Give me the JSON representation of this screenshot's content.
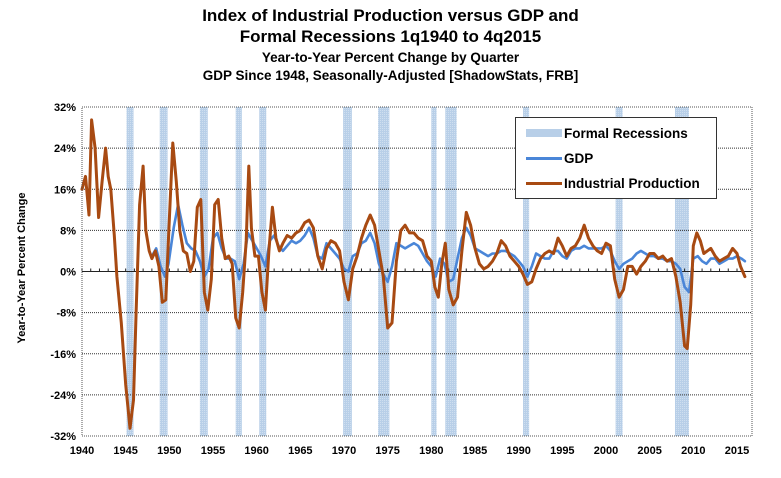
{
  "chart_data": {
    "type": "line",
    "title": "Index of Industrial Production versus GDP and",
    "title_line2": "Formal Recessions 1q1940 to 4q2015",
    "subtitle": "Year-to-Year Percent Change by Quarter",
    "subtitle_line2": "GDP Since 1948, Seasonally-Adjusted [ShadowStats, FRB]",
    "xlabel": "",
    "ylabel": "Year-to-Year Percent Change",
    "xlim": [
      1940,
      2016
    ],
    "ylim": [
      -32,
      32
    ],
    "x_ticks": [
      "1940",
      "1945",
      "1950",
      "1955",
      "1960",
      "1965",
      "1970",
      "1975",
      "1980",
      "1985",
      "1990",
      "1995",
      "2000",
      "2005",
      "2010",
      "2015"
    ],
    "y_ticks": [
      "32%",
      "24%",
      "16%",
      "8%",
      "0%",
      "-8%",
      "-16%",
      "-24%",
      "-32%"
    ],
    "y_tick_values": [
      32,
      24,
      16,
      8,
      0,
      -8,
      -16,
      -24,
      -32
    ],
    "grid": true,
    "legend_position": "top-right",
    "legend": [
      {
        "name": "Formal Recessions",
        "color": "#b8cfe8"
      },
      {
        "name": "GDP",
        "color": "#4a86d8"
      },
      {
        "name": "Industrial Production",
        "color": "#a84a12"
      }
    ],
    "recessions": [
      [
        1945.1,
        1945.9
      ],
      [
        1948.9,
        1949.8
      ],
      [
        1953.5,
        1954.4
      ],
      [
        1957.6,
        1958.3
      ],
      [
        1960.3,
        1961.1
      ],
      [
        1969.9,
        1970.9
      ],
      [
        1973.9,
        1975.2
      ],
      [
        1980.0,
        1980.6
      ],
      [
        1981.6,
        1982.9
      ],
      [
        1990.5,
        1991.2
      ],
      [
        2001.1,
        2001.9
      ],
      [
        2007.9,
        2009.5
      ]
    ],
    "series": [
      {
        "name": "GDP",
        "color": "#4a86d8",
        "x": [
          1948.0,
          1948.5,
          1949.0,
          1949.5,
          1949.9,
          1950.5,
          1951.0,
          1951.5,
          1952.0,
          1952.5,
          1953.0,
          1953.5,
          1954.0,
          1954.5,
          1955.0,
          1955.5,
          1956.0,
          1956.5,
          1957.0,
          1957.5,
          1958.0,
          1958.5,
          1959.0,
          1959.5,
          1960.0,
          1960.5,
          1961.0,
          1961.5,
          1962.0,
          1962.5,
          1963.0,
          1963.5,
          1964.0,
          1964.5,
          1965.0,
          1965.5,
          1966.0,
          1966.5,
          1967.0,
          1967.5,
          1968.0,
          1968.5,
          1969.0,
          1969.5,
          1970.0,
          1970.5,
          1971.0,
          1971.5,
          1972.0,
          1972.5,
          1973.0,
          1973.5,
          1974.0,
          1974.5,
          1975.0,
          1975.5,
          1976.0,
          1976.5,
          1977.0,
          1977.5,
          1978.0,
          1978.5,
          1979.0,
          1979.5,
          1980.0,
          1980.5,
          1981.0,
          1981.5,
          1982.0,
          1982.5,
          1983.0,
          1983.5,
          1984.0,
          1984.5,
          1985.0,
          1985.5,
          1986.0,
          1986.5,
          1987.0,
          1987.5,
          1988.0,
          1988.5,
          1989.0,
          1989.5,
          1990.0,
          1990.5,
          1991.0,
          1991.5,
          1992.0,
          1992.5,
          1993.0,
          1993.5,
          1994.0,
          1994.5,
          1995.0,
          1995.5,
          1996.0,
          1996.5,
          1997.0,
          1997.5,
          1998.0,
          1998.5,
          1999.0,
          1999.5,
          2000.0,
          2000.5,
          2001.0,
          2001.5,
          2002.0,
          2002.5,
          2003.0,
          2003.5,
          2004.0,
          2004.5,
          2005.0,
          2005.5,
          2006.0,
          2006.5,
          2007.0,
          2007.5,
          2008.0,
          2008.5,
          2009.0,
          2009.5,
          2010.0,
          2010.5,
          2011.0,
          2011.5,
          2012.0,
          2012.5,
          2013.0,
          2013.5,
          2014.0,
          2014.5,
          2015.0,
          2015.5,
          2015.9
        ],
        "values": [
          3.0,
          4.5,
          1.0,
          -1.0,
          1.5,
          8.5,
          13.0,
          9.0,
          5.5,
          4.5,
          4.0,
          2.0,
          -1.0,
          0.5,
          6.5,
          7.5,
          4.5,
          2.5,
          2.5,
          2.0,
          -1.5,
          1.5,
          7.5,
          6.0,
          4.5,
          3.0,
          1.0,
          6.0,
          7.0,
          5.0,
          4.0,
          5.0,
          6.0,
          5.5,
          6.0,
          7.0,
          8.5,
          6.5,
          3.0,
          2.5,
          5.5,
          4.5,
          3.5,
          2.5,
          0.5,
          0.0,
          3.0,
          3.5,
          5.5,
          6.0,
          7.5,
          5.5,
          1.5,
          -0.5,
          -2.0,
          1.0,
          5.5,
          5.0,
          4.5,
          5.0,
          5.5,
          5.0,
          3.5,
          2.0,
          1.0,
          -1.0,
          2.5,
          1.5,
          -2.0,
          -1.5,
          2.5,
          6.5,
          8.5,
          7.0,
          4.5,
          4.0,
          3.5,
          3.0,
          3.5,
          3.5,
          4.0,
          4.0,
          3.5,
          3.0,
          2.0,
          1.0,
          -1.0,
          1.0,
          3.5,
          3.0,
          2.5,
          2.5,
          4.0,
          4.0,
          3.0,
          2.5,
          4.0,
          4.5,
          4.5,
          5.0,
          4.5,
          4.5,
          4.5,
          4.5,
          5.0,
          4.0,
          2.0,
          0.5,
          1.5,
          2.0,
          2.5,
          3.5,
          4.0,
          3.5,
          3.0,
          3.0,
          2.5,
          2.5,
          2.0,
          2.0,
          1.5,
          0.5,
          -3.0,
          -4.0,
          2.5,
          3.0,
          2.0,
          1.5,
          2.5,
          2.5,
          1.5,
          2.0,
          2.5,
          2.5,
          3.0,
          2.5,
          2.0
        ]
      },
      {
        "name": "Industrial Production",
        "color": "#a84a12",
        "x": [
          1940.0,
          1940.4,
          1940.8,
          1941.1,
          1941.5,
          1941.9,
          1942.3,
          1942.7,
          1943.0,
          1943.3,
          1943.7,
          1944.0,
          1944.5,
          1945.0,
          1945.5,
          1945.9,
          1946.2,
          1946.6,
          1947.0,
          1947.3,
          1947.7,
          1948.0,
          1948.4,
          1948.8,
          1949.2,
          1949.6,
          1950.0,
          1950.4,
          1950.8,
          1951.2,
          1951.6,
          1952.0,
          1952.4,
          1952.8,
          1953.2,
          1953.6,
          1954.0,
          1954.4,
          1954.8,
          1955.2,
          1955.6,
          1956.0,
          1956.4,
          1956.8,
          1957.2,
          1957.6,
          1958.0,
          1958.4,
          1958.8,
          1959.1,
          1959.4,
          1959.8,
          1960.2,
          1960.6,
          1961.0,
          1961.4,
          1961.8,
          1962.2,
          1962.6,
          1963.0,
          1963.5,
          1964.0,
          1964.5,
          1965.0,
          1965.5,
          1966.0,
          1966.5,
          1967.0,
          1967.5,
          1968.0,
          1968.5,
          1969.0,
          1969.5,
          1970.0,
          1970.5,
          1971.0,
          1971.5,
          1972.0,
          1972.5,
          1973.0,
          1973.5,
          1974.0,
          1974.5,
          1975.0,
          1975.5,
          1976.0,
          1976.5,
          1977.0,
          1977.5,
          1978.0,
          1978.5,
          1979.0,
          1979.5,
          1980.0,
          1980.4,
          1980.8,
          1981.2,
          1981.6,
          1982.0,
          1982.5,
          1983.0,
          1983.5,
          1984.0,
          1984.5,
          1985.0,
          1985.5,
          1986.0,
          1986.5,
          1987.0,
          1987.5,
          1988.0,
          1988.5,
          1989.0,
          1989.5,
          1990.0,
          1990.5,
          1991.0,
          1991.5,
          1992.0,
          1992.5,
          1993.0,
          1993.5,
          1994.0,
          1994.5,
          1995.0,
          1995.5,
          1996.0,
          1996.5,
          1997.0,
          1997.5,
          1998.0,
          1998.5,
          1999.0,
          1999.5,
          2000.0,
          2000.5,
          2001.0,
          2001.5,
          2002.0,
          2002.5,
          2003.0,
          2003.5,
          2004.0,
          2004.5,
          2005.0,
          2005.5,
          2006.0,
          2006.5,
          2007.0,
          2007.5,
          2008.0,
          2008.5,
          2009.0,
          2009.3,
          2009.7,
          2010.0,
          2010.4,
          2010.8,
          2011.2,
          2011.6,
          2012.0,
          2012.5,
          2013.0,
          2013.5,
          2014.0,
          2014.5,
          2015.0,
          2015.4,
          2015.9
        ],
        "values": [
          16.0,
          18.5,
          11.0,
          29.5,
          24.0,
          10.5,
          17.5,
          24.0,
          18.5,
          16.0,
          7.0,
          -1.0,
          -10.0,
          -22.0,
          -30.5,
          -25.0,
          -8.0,
          13.0,
          20.5,
          8.0,
          4.0,
          2.5,
          4.0,
          1.0,
          -6.0,
          -5.5,
          10.0,
          25.0,
          17.5,
          8.0,
          4.0,
          3.5,
          0.0,
          2.0,
          12.5,
          14.0,
          -4.0,
          -7.5,
          -1.5,
          13.0,
          14.0,
          6.5,
          2.5,
          3.0,
          1.5,
          -9.0,
          -11.0,
          -4.0,
          6.0,
          20.5,
          8.5,
          3.0,
          3.0,
          -4.0,
          -7.5,
          4.0,
          12.5,
          6.5,
          4.0,
          5.5,
          7.0,
          6.5,
          7.5,
          8.0,
          9.5,
          10.0,
          8.5,
          3.0,
          0.5,
          4.5,
          6.0,
          5.5,
          4.0,
          -2.0,
          -5.5,
          0.5,
          3.0,
          6.5,
          9.0,
          11.0,
          9.0,
          4.0,
          -1.0,
          -11.0,
          -10.0,
          2.0,
          8.0,
          9.0,
          7.5,
          7.5,
          6.5,
          6.0,
          3.0,
          2.0,
          -3.0,
          -5.0,
          1.5,
          5.5,
          -3.5,
          -6.5,
          -5.0,
          4.0,
          11.5,
          9.0,
          4.5,
          1.5,
          0.5,
          1.0,
          2.0,
          3.5,
          6.0,
          5.0,
          3.0,
          2.0,
          1.0,
          -0.5,
          -2.5,
          -2.0,
          0.5,
          2.5,
          3.5,
          4.0,
          3.5,
          6.5,
          5.0,
          3.0,
          4.5,
          5.0,
          6.5,
          9.0,
          6.5,
          5.0,
          4.0,
          3.5,
          5.5,
          5.0,
          -1.5,
          -5.0,
          -3.5,
          1.0,
          1.0,
          -0.5,
          1.0,
          2.0,
          3.5,
          3.5,
          2.5,
          3.0,
          2.0,
          2.5,
          -1.0,
          -6.0,
          -14.5,
          -15.0,
          -6.5,
          5.0,
          7.5,
          6.0,
          3.5,
          4.0,
          4.5,
          3.0,
          2.0,
          2.5,
          3.0,
          4.5,
          3.5,
          1.0,
          -1.0
        ]
      }
    ]
  }
}
